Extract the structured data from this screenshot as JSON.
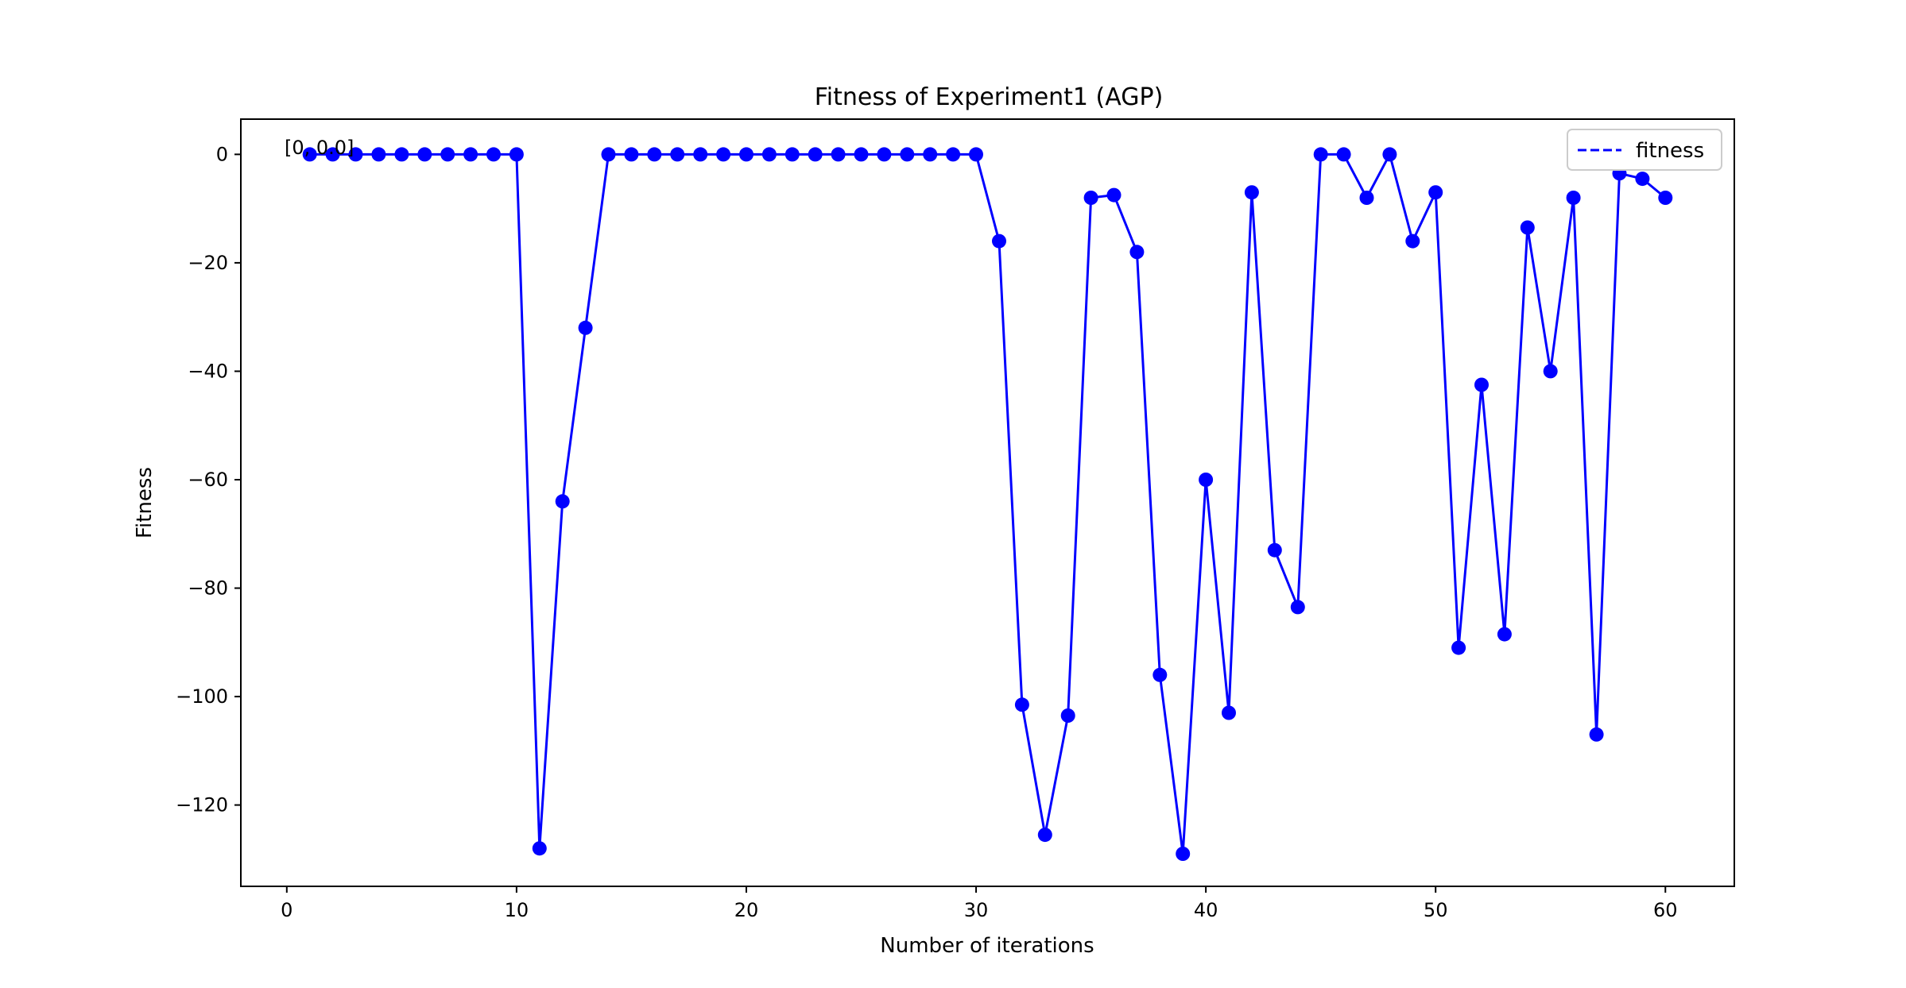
{
  "chart_data": {
    "type": "line",
    "title": "Fitness of Experiment1 (AGP)",
    "xlabel": "Number of iterations",
    "ylabel": "Fitness",
    "xlim": [
      -2,
      63
    ],
    "ylim": [
      -135,
      6.5
    ],
    "xticks": [
      0,
      10,
      20,
      30,
      40,
      50,
      60
    ],
    "xtick_labels": [
      "0",
      "10",
      "20",
      "30",
      "40",
      "50",
      "60"
    ],
    "yticks": [
      0,
      -20,
      -40,
      -60,
      -80,
      -100,
      -120
    ],
    "ytick_labels": [
      "0",
      "−20",
      "−40",
      "−60",
      "−80",
      "−100",
      "−120"
    ],
    "grid": false,
    "legend": {
      "position": "top-right",
      "entries": [
        {
          "label": "fitness",
          "style": "dashed"
        }
      ]
    },
    "annotation": {
      "text": "[0, 0.0]",
      "x": 0,
      "y": 0
    },
    "series": [
      {
        "name": "fitness",
        "color": "#0000ff",
        "marker": "circle",
        "x": [
          1,
          2,
          3,
          4,
          5,
          6,
          7,
          8,
          9,
          10,
          11,
          12,
          13,
          14,
          15,
          16,
          17,
          18,
          19,
          20,
          21,
          22,
          23,
          24,
          25,
          26,
          27,
          28,
          29,
          30,
          31,
          32,
          33,
          34,
          35,
          36,
          37,
          38,
          39,
          40,
          41,
          42,
          43,
          44,
          45,
          46,
          47,
          48,
          49,
          50,
          51,
          52,
          53,
          54,
          55,
          56,
          57,
          58,
          59,
          60
        ],
        "y": [
          0,
          0,
          0,
          0,
          0,
          0,
          0,
          0,
          0,
          0,
          -128,
          -64,
          -32,
          0,
          0,
          0,
          0,
          0,
          0,
          0,
          0,
          0,
          0,
          0,
          0,
          0,
          0,
          0,
          0,
          0,
          -16,
          -101.5,
          -125.5,
          -103.5,
          -8,
          -7.5,
          -18,
          -96,
          -129,
          -60,
          -103,
          -7,
          -73,
          -83.5,
          0,
          0,
          -8,
          0,
          -16,
          -7,
          -91,
          -42.5,
          -88.5,
          -13.5,
          -40,
          -8,
          -107,
          -3.5,
          -4.5,
          -8
        ]
      }
    ]
  }
}
